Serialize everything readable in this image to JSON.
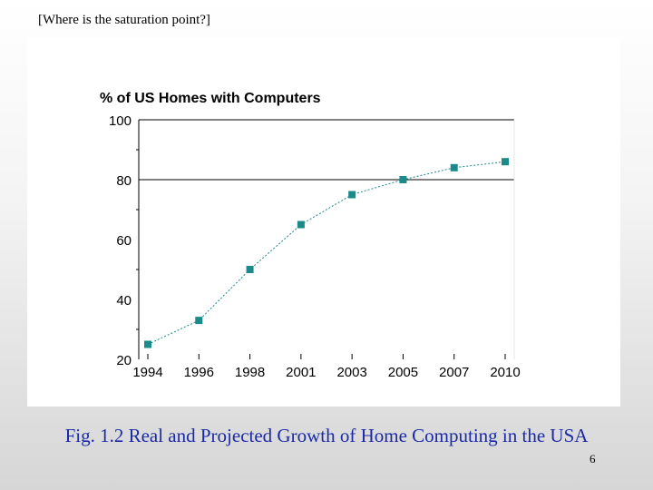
{
  "slide": {
    "note": "[Where is the saturation point?]",
    "caption": "Fig. 1.2 Real and Projected Growth of Home Computing in the USA",
    "page_number": "6"
  },
  "chart_data": {
    "type": "line",
    "title": "% of US Homes with Computers",
    "xlabel": "",
    "ylabel": "",
    "categories": [
      "1994",
      "1996",
      "1998",
      "2001",
      "2003",
      "2005",
      "2007",
      "2010"
    ],
    "values": [
      25,
      33,
      50,
      65,
      75,
      80,
      84,
      86
    ],
    "ylim": [
      20,
      100
    ],
    "yticks": [
      20,
      40,
      60,
      80,
      100
    ],
    "gridlines_y": [
      80,
      100
    ],
    "line_style": "dotted",
    "color": "#1a8a8a",
    "legend": "none"
  }
}
